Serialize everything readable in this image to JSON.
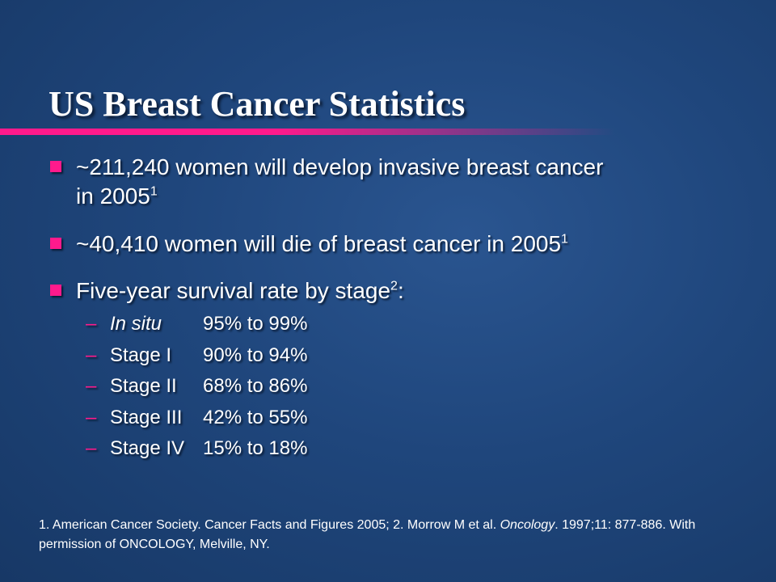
{
  "title": "US Breast Cancer Statistics",
  "bullets": [
    {
      "line1": "~211,240 women will develop invasive breast cancer",
      "line2": "in 2005",
      "sup": "1"
    },
    {
      "line1": "~40,410 women will die of breast cancer in 2005",
      "sup": "1"
    },
    {
      "line1": "Five-year survival rate by stage",
      "sup": "2",
      "suffix": ":"
    }
  ],
  "stages": [
    {
      "dash": "–",
      "label": "In situ",
      "range": "95% to 99%"
    },
    {
      "dash": "–",
      "label": "Stage I",
      "range": "90% to 94%"
    },
    {
      "dash": "–",
      "label": "Stage II",
      "range": "68% to 86%"
    },
    {
      "dash": "–",
      "label": "Stage III",
      "range": "42% to 55%"
    },
    {
      "dash": "–",
      "label": "Stage IV",
      "range": "15% to 18%"
    }
  ],
  "footnote": {
    "part1": "1. American Cancer Society. Cancer Facts and Figures 2005; 2. Morrow M et al. ",
    "journal": "Oncology",
    "part2": ". 1997;11: 877-886. With permission of ONCOLOGY, Melville, NY."
  },
  "colors": {
    "accent": "#ff1a8c",
    "background": "#1f467c",
    "text": "#ffffff"
  }
}
